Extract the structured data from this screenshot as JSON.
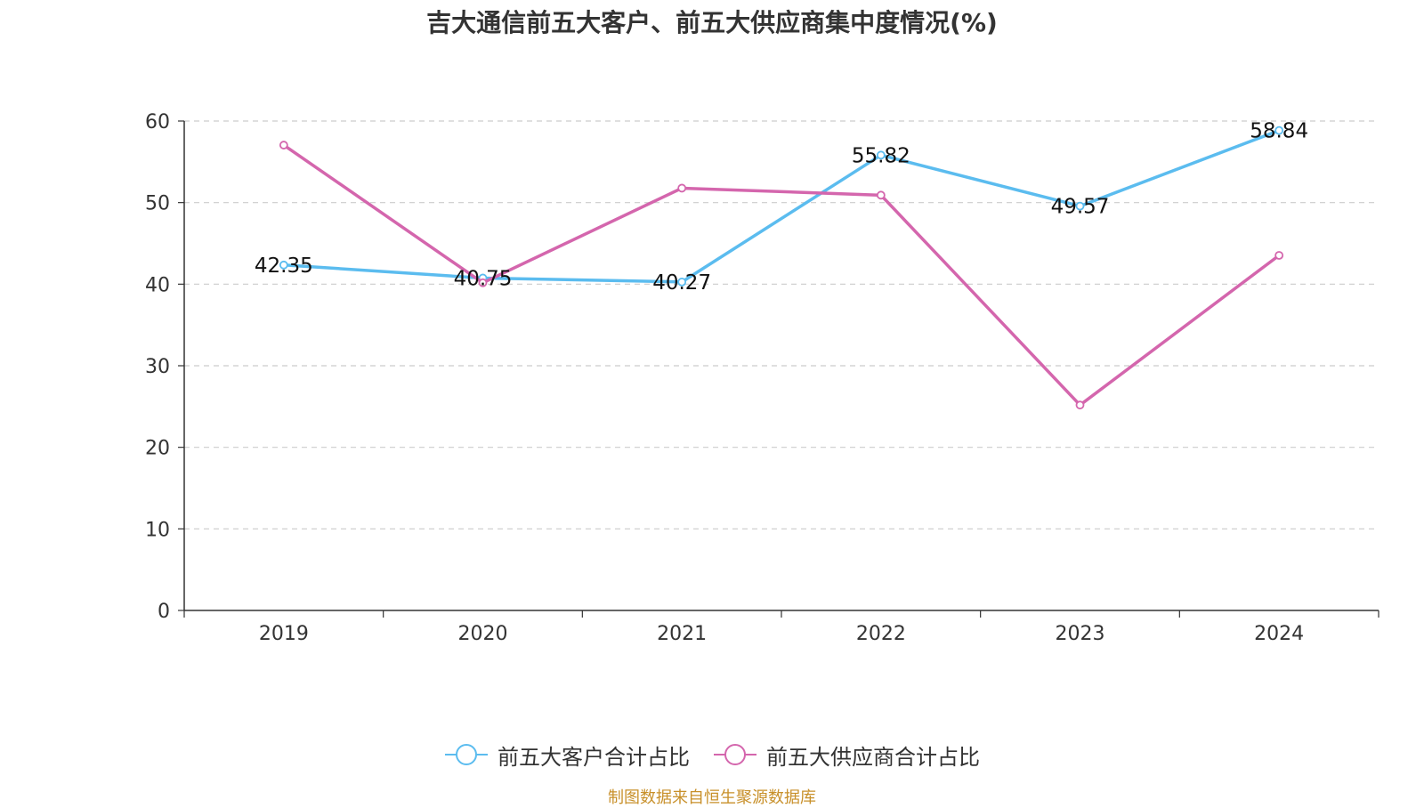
{
  "chart_data": {
    "type": "line",
    "title": "吉大通信前五大客户、前五大供应商集中度情况(%)",
    "categories": [
      "2019",
      "2020",
      "2021",
      "2022",
      "2023",
      "2024"
    ],
    "ylim": [
      0,
      60
    ],
    "yticks": [
      "0",
      "10",
      "20",
      "30",
      "40",
      "50",
      "60"
    ],
    "grid": true,
    "legend_position": "bottom",
    "series": [
      {
        "name": "前五大客户合计占比",
        "color": "#5bbcef",
        "values": [
          42.35,
          40.75,
          40.27,
          55.82,
          49.57,
          58.84
        ],
        "labels": [
          "42.35",
          "40.75",
          "40.27",
          "55.82",
          "49.57",
          "58.84"
        ]
      },
      {
        "name": "前五大供应商合计占比",
        "color": "#d466ad",
        "values": [
          57.05,
          40.17,
          51.77,
          50.91,
          25.18,
          43.53
        ]
      }
    ]
  },
  "source_note": "制图数据来自恒生聚源数据库"
}
